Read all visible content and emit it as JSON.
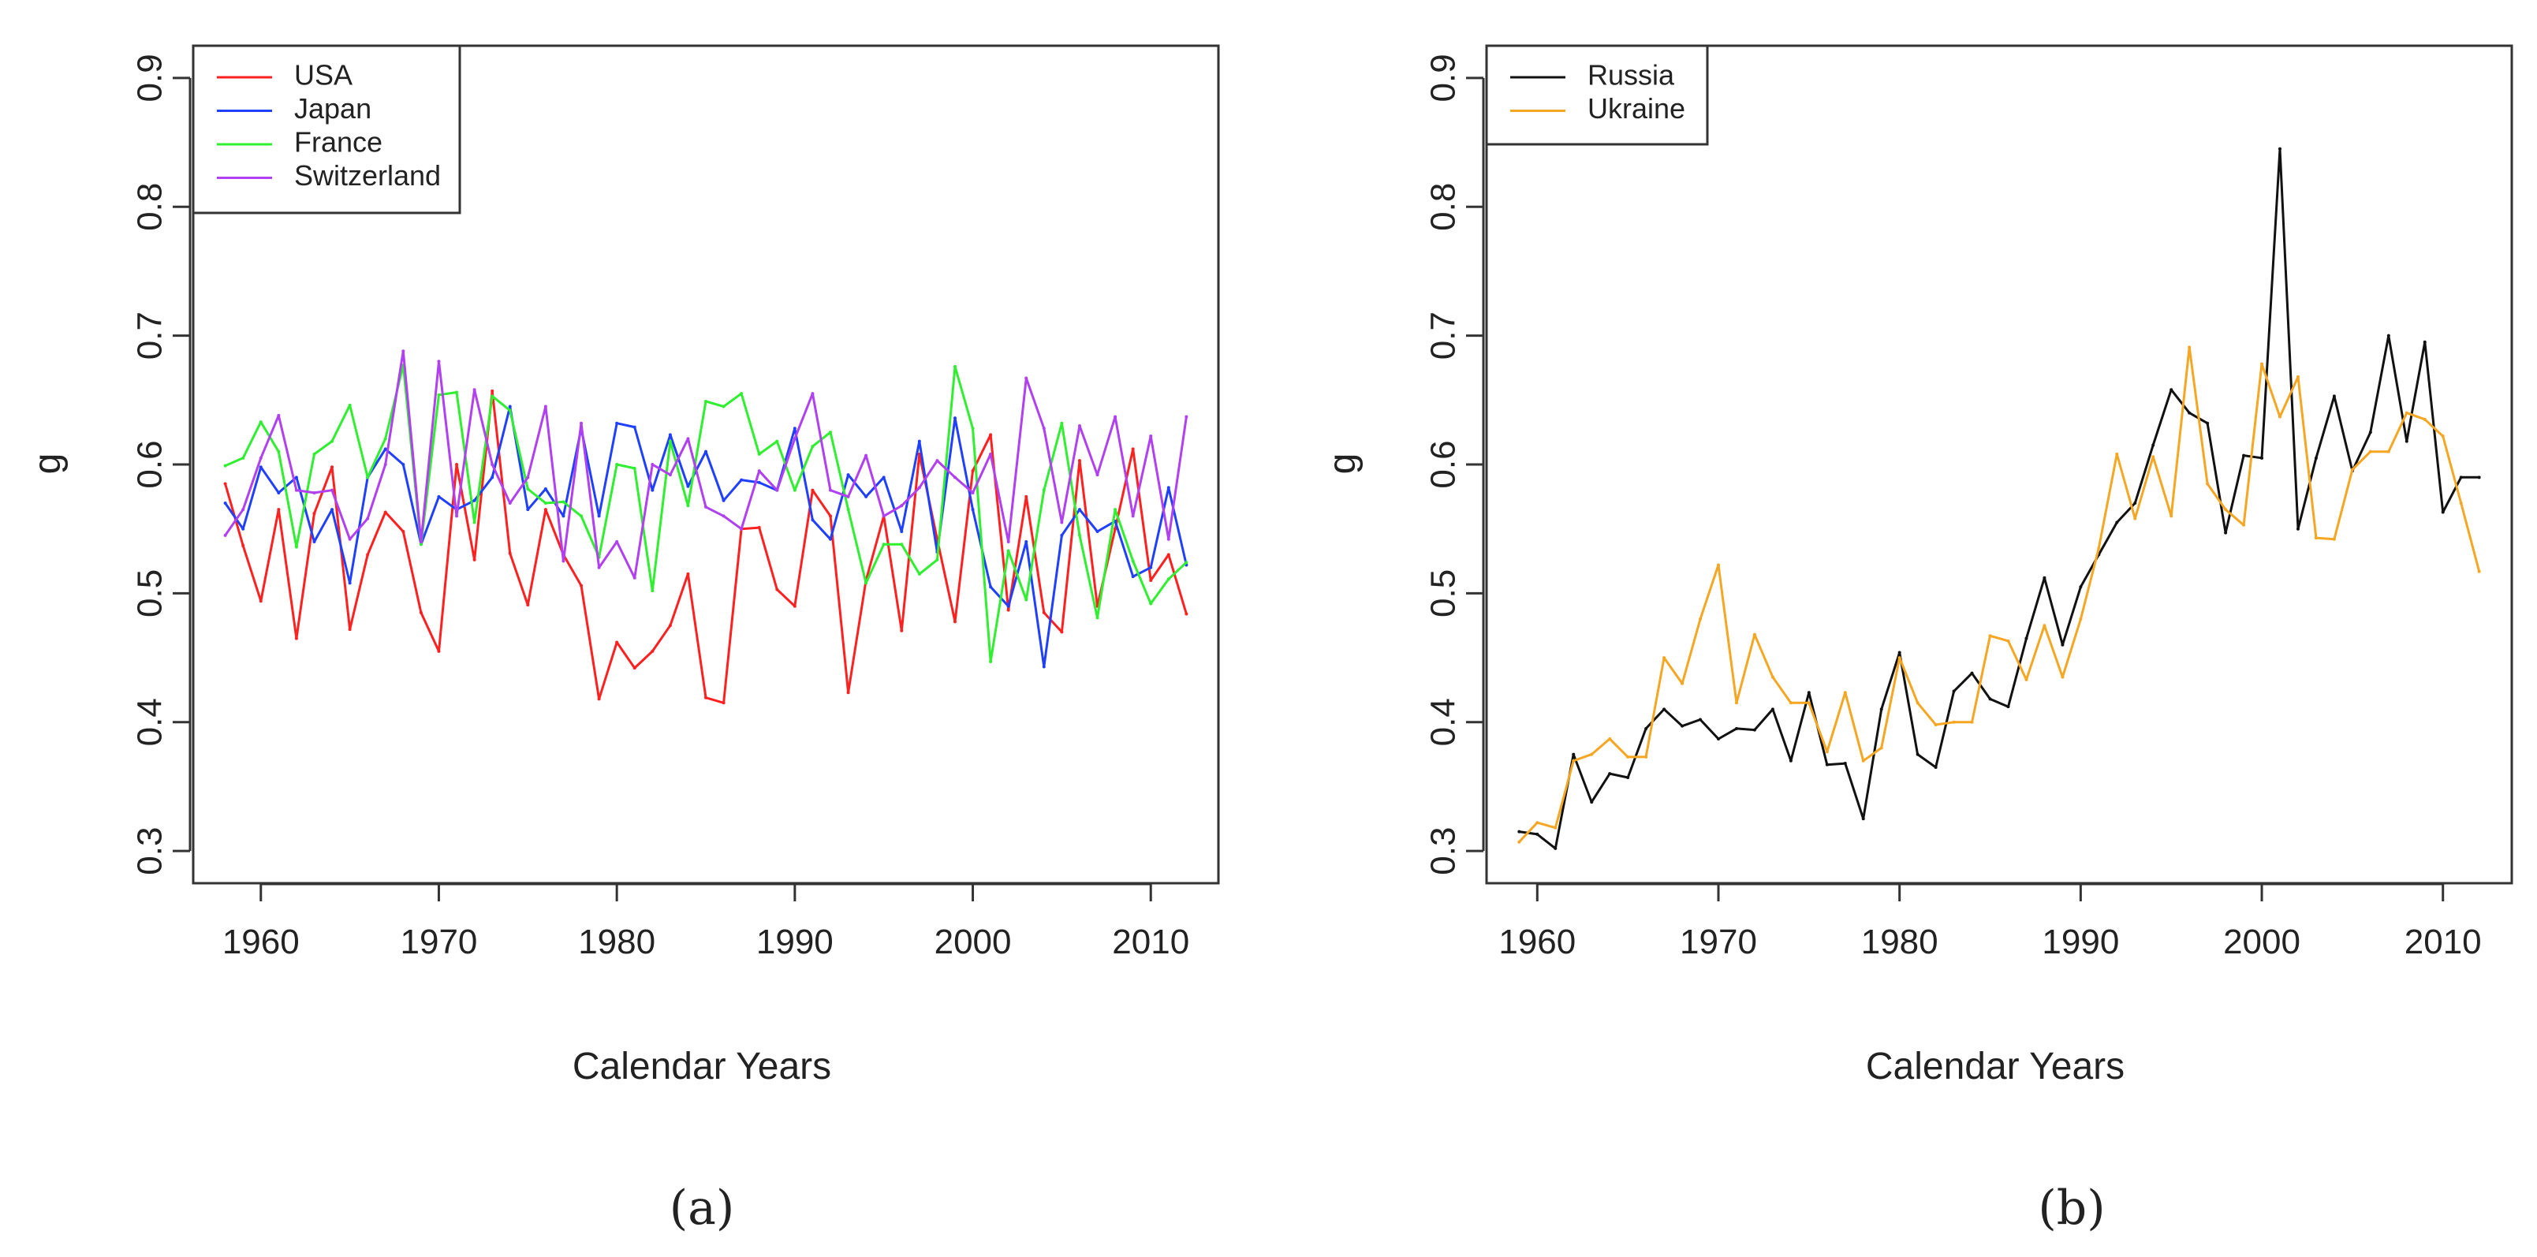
{
  "chart_data": [
    {
      "type": "line",
      "panel_label": "(a)",
      "xlabel": "Calendar Years",
      "ylabel": "g",
      "xlim": [
        1956.2,
        2013.8
      ],
      "ylim": [
        0.275,
        0.925
      ],
      "xticks": [
        1960,
        1970,
        1980,
        1990,
        2000,
        2010
      ],
      "yticks": [
        0.3,
        0.4,
        0.5,
        0.6,
        0.7,
        0.8,
        0.9
      ],
      "legend_position": "top-left",
      "grid": false,
      "x": [
        1958,
        1959,
        1960,
        1961,
        1962,
        1963,
        1964,
        1965,
        1966,
        1967,
        1968,
        1969,
        1970,
        1971,
        1972,
        1973,
        1974,
        1975,
        1976,
        1977,
        1978,
        1979,
        1980,
        1981,
        1982,
        1983,
        1984,
        1985,
        1986,
        1987,
        1988,
        1989,
        1990,
        1991,
        1992,
        1993,
        1994,
        1995,
        1996,
        1997,
        1998,
        1999,
        2000,
        2001,
        2002,
        2003,
        2004,
        2005,
        2006,
        2007,
        2008,
        2009,
        2010,
        2011,
        2012
      ],
      "series": [
        {
          "name": "USA",
          "color": "#ff2020",
          "values": [
            0.585,
            0.537,
            0.494,
            0.565,
            0.465,
            0.562,
            0.598,
            0.472,
            0.53,
            0.563,
            0.548,
            0.485,
            0.455,
            0.6,
            0.526,
            0.657,
            0.531,
            0.491,
            0.565,
            0.53,
            0.506,
            0.418,
            0.462,
            0.442,
            0.455,
            0.475,
            0.515,
            0.419,
            0.415,
            0.55,
            0.551,
            0.503,
            0.49,
            0.58,
            0.56,
            0.423,
            0.51,
            0.56,
            0.471,
            0.608,
            0.542,
            0.478,
            0.595,
            0.623,
            0.487,
            0.575,
            0.485,
            0.47,
            0.603,
            0.49,
            0.55,
            0.612,
            0.51,
            0.53,
            0.484
          ]
        },
        {
          "name": "Japan",
          "color": "#2040ff",
          "values": [
            0.57,
            0.55,
            0.598,
            0.578,
            0.59,
            0.54,
            0.565,
            0.508,
            0.59,
            0.612,
            0.6,
            0.538,
            0.575,
            0.565,
            0.572,
            0.59,
            0.645,
            0.565,
            0.581,
            0.56,
            0.628,
            0.56,
            0.632,
            0.629,
            0.58,
            0.623,
            0.583,
            0.61,
            0.572,
            0.588,
            0.586,
            0.58,
            0.628,
            0.557,
            0.542,
            0.592,
            0.575,
            0.59,
            0.548,
            0.618,
            0.532,
            0.636,
            0.565,
            0.505,
            0.49,
            0.54,
            0.443,
            0.545,
            0.565,
            0.548,
            0.556,
            0.513,
            0.52,
            0.582,
            0.522
          ]
        },
        {
          "name": "France",
          "color": "#30ee30",
          "values": [
            0.599,
            0.605,
            0.633,
            0.61,
            0.536,
            0.608,
            0.618,
            0.646,
            0.59,
            0.62,
            0.677,
            0.538,
            0.654,
            0.656,
            0.555,
            0.653,
            0.642,
            0.581,
            0.57,
            0.571,
            0.56,
            0.528,
            0.6,
            0.597,
            0.502,
            0.618,
            0.568,
            0.649,
            0.645,
            0.655,
            0.608,
            0.618,
            0.58,
            0.614,
            0.625,
            0.565,
            0.508,
            0.538,
            0.538,
            0.515,
            0.526,
            0.676,
            0.628,
            0.447,
            0.533,
            0.495,
            0.58,
            0.632,
            0.545,
            0.481,
            0.565,
            0.525,
            0.492,
            0.511,
            0.524
          ]
        },
        {
          "name": "Switzerland",
          "color": "#b040f0",
          "values": [
            0.545,
            0.565,
            0.605,
            0.638,
            0.58,
            0.578,
            0.58,
            0.542,
            0.558,
            0.6,
            0.688,
            0.54,
            0.68,
            0.56,
            0.658,
            0.6,
            0.57,
            0.59,
            0.645,
            0.525,
            0.632,
            0.52,
            0.54,
            0.512,
            0.6,
            0.592,
            0.62,
            0.567,
            0.56,
            0.55,
            0.595,
            0.58,
            0.62,
            0.655,
            0.58,
            0.575,
            0.607,
            0.56,
            0.568,
            0.582,
            0.603,
            0.59,
            0.578,
            0.608,
            0.54,
            0.667,
            0.628,
            0.555,
            0.63,
            0.592,
            0.637,
            0.56,
            0.622,
            0.542,
            0.637
          ]
        }
      ]
    },
    {
      "type": "line",
      "panel_label": "(b)",
      "xlabel": "Calendar Years",
      "ylabel": "g",
      "xlim": [
        1957.2,
        2013.8
      ],
      "ylim": [
        0.275,
        0.925
      ],
      "xticks": [
        1960,
        1970,
        1980,
        1990,
        2000,
        2010
      ],
      "yticks": [
        0.3,
        0.4,
        0.5,
        0.6,
        0.7,
        0.8,
        0.9
      ],
      "legend_position": "top-left",
      "grid": false,
      "x": [
        1959,
        1960,
        1961,
        1962,
        1963,
        1964,
        1965,
        1966,
        1967,
        1968,
        1969,
        1970,
        1971,
        1972,
        1973,
        1974,
        1975,
        1976,
        1977,
        1978,
        1979,
        1980,
        1981,
        1982,
        1983,
        1984,
        1985,
        1986,
        1987,
        1988,
        1989,
        1990,
        1991,
        1992,
        1993,
        1994,
        1995,
        1996,
        1997,
        1998,
        1999,
        2000,
        2001,
        2002,
        2003,
        2004,
        2005,
        2006,
        2007,
        2008,
        2009,
        2010,
        2011,
        2012
      ],
      "series": [
        {
          "name": "Russia",
          "color": "#111111",
          "values": [
            0.315,
            0.313,
            0.302,
            0.375,
            0.338,
            0.36,
            0.357,
            0.395,
            0.41,
            0.397,
            0.402,
            0.387,
            0.395,
            0.394,
            0.41,
            0.37,
            0.423,
            0.367,
            0.368,
            0.325,
            0.41,
            0.454,
            0.375,
            0.365,
            0.424,
            0.438,
            0.418,
            0.412,
            0.465,
            0.512,
            0.46,
            0.505,
            0.53,
            0.555,
            0.57,
            0.615,
            0.658,
            0.64,
            0.632,
            0.547,
            0.607,
            0.605,
            0.845,
            0.55,
            0.605,
            0.653,
            0.595,
            0.625,
            0.7,
            0.618,
            0.695,
            0.563,
            0.59,
            0.59
          ]
        },
        {
          "name": "Ukraine",
          "color": "#f5a623",
          "values": [
            0.307,
            0.322,
            0.318,
            0.37,
            0.375,
            0.387,
            0.373,
            0.373,
            0.45,
            0.43,
            0.48,
            0.522,
            0.415,
            0.468,
            0.435,
            0.415,
            0.415,
            0.377,
            0.423,
            0.37,
            0.38,
            0.45,
            0.415,
            0.398,
            0.4,
            0.4,
            0.467,
            0.463,
            0.433,
            0.475,
            0.435,
            0.48,
            0.535,
            0.608,
            0.558,
            0.606,
            0.56,
            0.691,
            0.585,
            0.565,
            0.553,
            0.678,
            0.637,
            0.668,
            0.543,
            0.542,
            0.596,
            0.61,
            0.61,
            0.64,
            0.635,
            0.622,
            0.57,
            0.517
          ]
        }
      ]
    }
  ]
}
